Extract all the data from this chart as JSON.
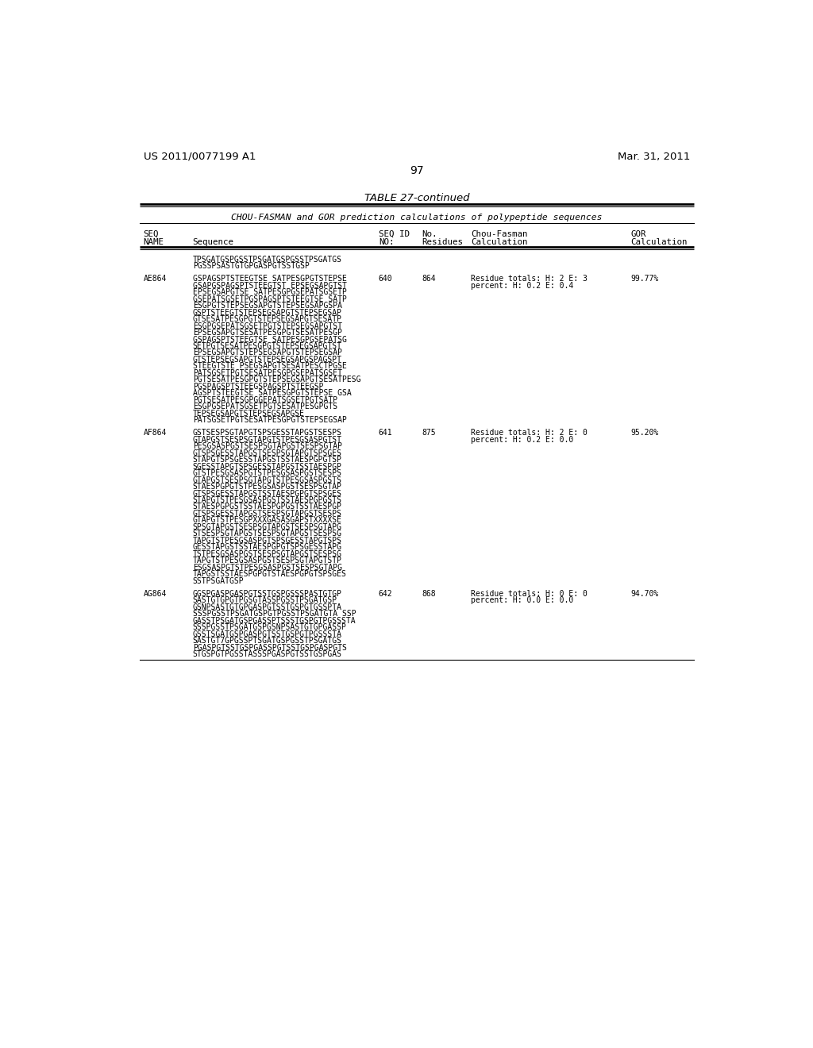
{
  "header_left": "US 2011/0077199 A1",
  "header_right": "Mar. 31, 2011",
  "page_number": "97",
  "table_title": "TABLE 27-continued",
  "table_subtitle": "CHOU-FASMAN and GOR prediction calculations of polypeptide sequences",
  "rows": [
    {
      "name": "",
      "seq_lines": [
        "TPSGATGSPGSSTPSGATGSPGSSTPSGATGS",
        "PGSSPSASTGTGPGASPGTSSTGSP"
      ],
      "seq_id": "",
      "residues": "",
      "chou_fasman": "",
      "gor": ""
    },
    {
      "name": "AE864",
      "seq_lines": [
        "GSPAGSPTSTEEGTSE SATPESGPGTSTEPSE",
        "GSAPGSPAGSPTSTEEGTST EPSEGSAPGTST",
        "EPSEGSAPGTSE SATPESGPGSEPATSGSETP",
        "GSEPATSGSETPGSPAGSPTSTEEGTSE SATP",
        "ESGPGTSTEPSEGSAPGTSTEPSEGSAPGSPA",
        "GSPTSTEEGTSTEPSEGSAPGTSTEPSEGSAP",
        "GTSESATPESGPGTSTEPSEGSAPGTSESATP",
        "ESGPGSEPATSGSETPGTSTEPSEGSAPGTST",
        "EPSEGSAPGTSESATPESGPGTSESATPESGP",
        "GSPAGSPTSTEEGTSE SATPESGPGSEPATSG",
        "SETPGTSESATPESGPGTSTEPSEGSAPGTST",
        "EPSEGSAPGTSTEPSEGSAPGTSTEPSEGSAP",
        "GTSTEPSEGSAPGTSTEPSEGSAPGSPAGSPT",
        "STEEGTSTE PSEGSAPGTSESATPESCTPGSE",
        "PATSGSETPGTSESATPESGPGSEPATSGSET",
        "PGTSESATPESGPGTSTEPSEGSAPGTSESATPESG",
        "PGSPAGSPTSTEEGSPAGSPTSTEEGSP",
        "AGSPTSTEEGTSE SATPESGPGTSTEPSE GSA",
        "PGTSESATPESGPGGEPATSGSETPGTSATP",
        "ESGPGSEPATSGSETPGTSESATPESGPGTS",
        "TEPSEGSAPGTSTEPSEGSAPGSE",
        "PATSGSETPGTSESATPESGPGTSTEPSEGSAP"
      ],
      "seq_id": "640",
      "residues": "864",
      "chou_fasman": "Residue totals: H: 2 E: 3\npercent: H: 0.2 E: 0.4",
      "gor": "99.77%"
    },
    {
      "name": "AF864",
      "seq_lines": [
        "GSTSESPSGTAPGTSPSGESSTAPGSTSESPS",
        "GTAPGSTSESPSGTAPGTSTPESGSASPGTST",
        "PESGSASPGSTSESPSGTAPGSTSESPSGTAP",
        "GTSPSGESSTAPGSTSESPSGTAPGTSPSGES",
        "STAPGTSPSGESSTAPGSTSSTAESPGPGTSP",
        "SGESSTAPGTSPSGESSTAPGSTSSTAESPGP",
        "GTSTPESGSASPGTSTPESGSASPGSTSESPS",
        "GTAPGSTSESPSGTAPGTSTPESGSASPGSTS",
        "STAESPGPGTSTPESGSASPGSTSESPSGTAP",
        "GTSPSGESSTAPGSTSSTAESPGPGTSPSGES",
        "STAPGTSTPESGSASPGSTSSTAESPGPGSTS",
        "STAESPGPGSTSSTAESPGPGSTSSTAESPGP",
        "GTSPSGESSTAPGSTSESPSGTAPGSTSESPS",
        "GTAPGTSTPESGPXXXGASASGAPSTXXXXSE",
        "SPSGTAPGSTSESPSGTAPGSTSESPSGTAPG",
        "STSESPSGTAPGSTSESPSGTAPGSTSESPSG",
        "TAPGTSTPESGSASPGTSPSGESSTAPGTSPS",
        "GESSTAPGSTSSTAESPGPGTSPSGESSTAPG",
        "TSTPESGSASPGSTSESPSGTAPGSTSESPSG",
        "TAPGTSTPESGSASPGSTSESPSGTAPGTSTP",
        "ESGSASPGTSTPESGSASPGSTSESPSGTAPG",
        "TAPGSTSSTAESPGPGTSTAESPGPGTSPSGES",
        "SSTPSGATGSP"
      ],
      "seq_id": "641",
      "residues": "875",
      "chou_fasman": "Residue totals: H: 2 E: 0\npercent: H: 0.2 E: 0.0",
      "gor": "95.20%"
    },
    {
      "name": "AG864",
      "seq_lines": [
        "GGSPGASPGASPGTSSTGSPGSSSPASTGTGP",
        "SASTGTGPGTPGSGTASSPGSSTPSGATGSP",
        "GSNPSASTGTGPGASPGTSSTGSPGTGSSPTA",
        "SSSPGSSTPSGATGSPGTPGSSTPSGATGTA SSP",
        "GASSTPSGATGSPGASSPTSSSTGSPGTPGSSSTA",
        "SSSPGSSTPSGATGSPGSNPSASTGTGPGASSP",
        "GSSTSGATGSPGASPGTSSTGSPGTPGSSSTA",
        "SASTGT7GPGSSPTSGATGSPGSSTPSGATGS",
        "PGASPGTSSTGSPGASSPGTSSTGSPGASPGTS",
        "STGSPGTPGSSTASSSPGASPGTSSTGSPGAS"
      ],
      "seq_id": "642",
      "residues": "868",
      "chou_fasman": "Residue totals: H: 0 E: 0\npercent: H: 0.0 E: 0.0",
      "gor": "94.70%"
    }
  ]
}
